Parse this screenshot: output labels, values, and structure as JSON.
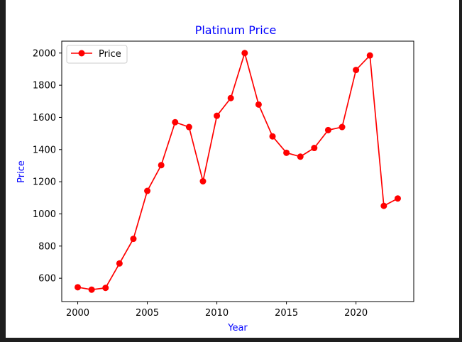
{
  "chart_data": {
    "type": "line",
    "title": "Platinum Price",
    "xlabel": "Year",
    "ylabel": "Price",
    "x": [
      2000,
      2001,
      2002,
      2003,
      2004,
      2005,
      2006,
      2007,
      2008,
      2009,
      2010,
      2011,
      2012,
      2013,
      2014,
      2015,
      2016,
      2017,
      2018,
      2019,
      2020,
      2021,
      2022,
      2023
    ],
    "series": [
      {
        "name": "Price",
        "color": "#ff0000",
        "marker": "circle",
        "values": [
          544,
          529,
          540,
          692,
          845,
          1143,
          1303,
          1570,
          1540,
          1203,
          1610,
          1720,
          2000,
          1680,
          1482,
          1380,
          1356,
          1410,
          1521,
          1540,
          1895,
          1985,
          1050,
          1096
        ]
      }
    ],
    "xticks": [
      2000,
      2005,
      2010,
      2015,
      2020
    ],
    "yticks": [
      600,
      800,
      1000,
      1200,
      1400,
      1600,
      1800,
      2000
    ],
    "xlim": [
      1998.85,
      2024.15
    ],
    "ylim": [
      455,
      2074
    ],
    "grid": false,
    "legend": "top-left",
    "title_color": "#0000ff",
    "label_color": "#0000ff"
  }
}
